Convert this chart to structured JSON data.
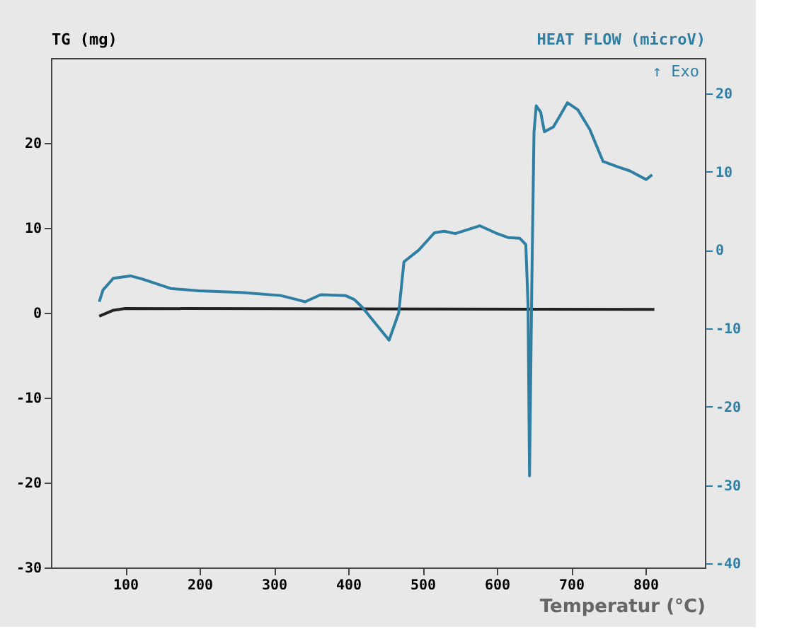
{
  "chart_data": {
    "type": "line",
    "xlabel": "Temperatur (°C)",
    "ylabel": "TG (mg)",
    "y2label": "HEAT FLOW (microV)",
    "annotations": [
      "↑ Exo"
    ],
    "xlim": [
      0,
      880
    ],
    "xticks": [
      100,
      200,
      300,
      400,
      500,
      600,
      700,
      800
    ],
    "ylim": [
      -30,
      30
    ],
    "yticks": [
      -30,
      -20,
      -10,
      0,
      10,
      20
    ],
    "y2lim": [
      -40.5,
      24.5
    ],
    "y2ticks": [
      -40,
      -30,
      -20,
      -10,
      0,
      10,
      20
    ],
    "grid": false,
    "legend": false,
    "marker": "none",
    "line_style": "solid",
    "series": [
      {
        "color": "#222222",
        "axis": "y",
        "x": [
          65,
          84,
          100,
          812
        ],
        "values": [
          -0.4,
          0.3,
          0.5,
          0.4
        ]
      },
      {
        "color": "#2e7fa3",
        "axis": "y2",
        "x": [
          65,
          70,
          84,
          107,
          123,
          161,
          199,
          255,
          309,
          330,
          342,
          363,
          396,
          408,
          419,
          455,
          468,
          475,
          495,
          516,
          529,
          544,
          577,
          598,
          615,
          631,
          639,
          642,
          644,
          647,
          650,
          653,
          659,
          664,
          676,
          686,
          695,
          709,
          725,
          743,
          763,
          779,
          801,
          809
        ],
        "values": [
          -6.6,
          -5.1,
          -3.6,
          -3.3,
          -3.7,
          -4.9,
          -5.2,
          -5.4,
          -5.8,
          -6.3,
          -6.6,
          -5.7,
          -5.8,
          -6.3,
          -7.3,
          -11.5,
          -8.0,
          -1.5,
          0,
          2.2,
          2.4,
          2.1,
          3.1,
          2.2,
          1.6,
          1.5,
          0.7,
          -7,
          -28.8,
          -5,
          15,
          18.4,
          17.6,
          15.1,
          15.7,
          17.3,
          18.8,
          17.9,
          15.4,
          11.3,
          10.6,
          10.1,
          9.0,
          9.6
        ]
      }
    ]
  }
}
